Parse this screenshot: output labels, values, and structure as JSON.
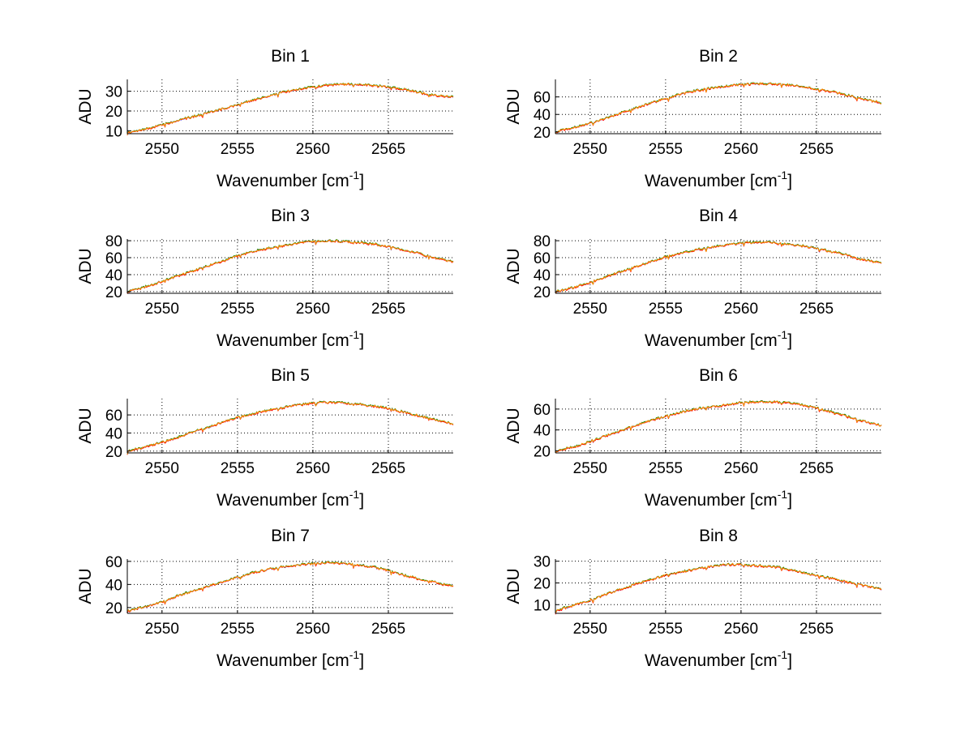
{
  "chart_data": [
    {
      "type": "line",
      "title": "Bin 1",
      "xlabel": "Wavenumber [cm",
      "xlabel_sup": "-1",
      "xlabel_end": "]",
      "ylabel": "ADU",
      "xlim": [
        2547.7,
        2569.3
      ],
      "ylim": [
        8.5,
        36
      ],
      "xticks": [
        2550,
        2555,
        2560,
        2565
      ],
      "yticks": [
        10,
        20,
        30
      ],
      "grid": true,
      "colors": [
        "#0000ff",
        "#008000",
        "#ff0000",
        "#ff9900"
      ],
      "series": [
        {
          "name": "Bin 1",
          "x": [
            2547.7,
            2549,
            2550,
            2551,
            2552,
            2553,
            2554,
            2555,
            2556,
            2557,
            2558,
            2559,
            2560,
            2561,
            2562,
            2563,
            2564,
            2565,
            2566,
            2567,
            2568,
            2569.3
          ],
          "y": [
            9,
            11,
            13,
            15,
            17,
            19,
            21,
            23,
            25.5,
            27.5,
            29.5,
            31,
            32,
            33,
            33.5,
            33.5,
            33,
            32,
            31,
            29.5,
            28,
            27
          ]
        }
      ],
      "annotations": []
    },
    {
      "type": "line",
      "title": "Bin 2",
      "xlabel": "Wavenumber [cm",
      "xlabel_sup": "-1",
      "xlabel_end": "]",
      "ylabel": "ADU",
      "xlim": [
        2547.7,
        2569.3
      ],
      "ylim": [
        18,
        80
      ],
      "xticks": [
        2550,
        2555,
        2560,
        2565
      ],
      "yticks": [
        20,
        40,
        60
      ],
      "grid": true,
      "colors": [
        "#0000ff",
        "#008000",
        "#ff0000",
        "#ff9900"
      ],
      "series": [
        {
          "name": "Bin 2",
          "x": [
            2547.7,
            2549,
            2550,
            2551,
            2552,
            2553,
            2554,
            2555,
            2556,
            2557,
            2558,
            2559,
            2560,
            2561,
            2562,
            2563,
            2564,
            2565,
            2566,
            2567,
            2568,
            2569.3
          ],
          "y": [
            20,
            25,
            30,
            35,
            41,
            47,
            53,
            58,
            63,
            67,
            70,
            72,
            74,
            75,
            75,
            74,
            72,
            69,
            66,
            62,
            58,
            53
          ]
        }
      ]
    },
    {
      "type": "line",
      "title": "Bin 3",
      "xlabel": "Wavenumber [cm",
      "xlabel_sup": "-1",
      "xlabel_end": "]",
      "ylabel": "ADU",
      "xlim": [
        2547.7,
        2569.3
      ],
      "ylim": [
        18,
        82
      ],
      "xticks": [
        2550,
        2555,
        2560,
        2565
      ],
      "yticks": [
        20,
        40,
        60,
        80
      ],
      "grid": true,
      "colors": [
        "#0000ff",
        "#008000",
        "#ff0000",
        "#ff9900"
      ],
      "series": [
        {
          "name": "Bin 3",
          "x": [
            2547.7,
            2549,
            2550,
            2551,
            2552,
            2553,
            2554,
            2555,
            2556,
            2557,
            2558,
            2559,
            2560,
            2561,
            2562,
            2563,
            2564,
            2565,
            2566,
            2567,
            2568,
            2569.3
          ],
          "y": [
            20,
            26,
            32,
            38,
            44,
            50,
            56,
            62,
            67,
            71,
            74,
            77,
            79,
            80,
            79,
            78,
            76,
            73,
            69,
            65,
            60,
            55
          ]
        }
      ]
    },
    {
      "type": "line",
      "title": "Bin 4",
      "xlabel": "Wavenumber [cm",
      "xlabel_sup": "-1",
      "xlabel_end": "]",
      "ylabel": "ADU",
      "xlim": [
        2547.7,
        2569.3
      ],
      "ylim": [
        18,
        82
      ],
      "xticks": [
        2550,
        2555,
        2560,
        2565
      ],
      "yticks": [
        20,
        40,
        60,
        80
      ],
      "grid": true,
      "colors": [
        "#0000ff",
        "#008000",
        "#ff0000",
        "#ff9900"
      ],
      "series": [
        {
          "name": "Bin 4",
          "x": [
            2547.7,
            2549,
            2550,
            2551,
            2552,
            2553,
            2554,
            2555,
            2556,
            2557,
            2558,
            2559,
            2560,
            2561,
            2562,
            2563,
            2564,
            2565,
            2566,
            2567,
            2568,
            2569.3
          ],
          "y": [
            20,
            25,
            31,
            37,
            43,
            49,
            55,
            61,
            65,
            69,
            72,
            75,
            77,
            78,
            78,
            76,
            74,
            71,
            67,
            63,
            58,
            54
          ]
        }
      ]
    },
    {
      "type": "line",
      "title": "Bin 5",
      "xlabel": "Wavenumber [cm",
      "xlabel_sup": "-1",
      "xlabel_end": "]",
      "ylabel": "ADU",
      "xlim": [
        2547.7,
        2569.3
      ],
      "ylim": [
        18,
        78
      ],
      "xticks": [
        2550,
        2555,
        2560,
        2565
      ],
      "yticks": [
        20,
        40,
        60
      ],
      "grid": true,
      "colors": [
        "#0000ff",
        "#008000",
        "#ff0000",
        "#ff9900"
      ],
      "series": [
        {
          "name": "Bin 5",
          "x": [
            2547.7,
            2549,
            2550,
            2551,
            2552,
            2553,
            2554,
            2555,
            2556,
            2557,
            2558,
            2559,
            2560,
            2561,
            2562,
            2563,
            2564,
            2565,
            2566,
            2567,
            2568,
            2569.3
          ],
          "y": [
            20,
            25,
            30,
            35,
            41,
            46,
            52,
            57,
            61,
            65,
            68,
            71,
            73,
            74,
            73,
            72,
            70,
            67,
            63,
            59,
            55,
            50
          ]
        }
      ]
    },
    {
      "type": "line",
      "title": "Bin 6",
      "xlabel": "Wavenumber [cm",
      "xlabel_sup": "-1",
      "xlabel_end": "]",
      "ylabel": "ADU",
      "xlim": [
        2547.7,
        2569.3
      ],
      "ylim": [
        18,
        70
      ],
      "xticks": [
        2550,
        2555,
        2560,
        2565
      ],
      "yticks": [
        20,
        40,
        60
      ],
      "grid": true,
      "colors": [
        "#0000ff",
        "#008000",
        "#ff0000",
        "#ff9900"
      ],
      "series": [
        {
          "name": "Bin 6",
          "x": [
            2547.7,
            2549,
            2550,
            2551,
            2552,
            2553,
            2554,
            2555,
            2556,
            2557,
            2558,
            2559,
            2560,
            2561,
            2562,
            2563,
            2564,
            2565,
            2566,
            2567,
            2568,
            2569.3
          ],
          "y": [
            20,
            24,
            29,
            34,
            39,
            44,
            49,
            53,
            57,
            60,
            62,
            64,
            66,
            67,
            67,
            66,
            64,
            61,
            57,
            53,
            49,
            44
          ]
        }
      ]
    },
    {
      "type": "line",
      "title": "Bin 7",
      "xlabel": "Wavenumber [cm",
      "xlabel_sup": "-1",
      "xlabel_end": "]",
      "ylabel": "ADU",
      "xlim": [
        2547.7,
        2569.3
      ],
      "ylim": [
        15,
        62
      ],
      "xticks": [
        2550,
        2555,
        2560,
        2565
      ],
      "yticks": [
        20,
        40,
        60
      ],
      "grid": true,
      "colors": [
        "#0000ff",
        "#008000",
        "#ff0000",
        "#ff9900"
      ],
      "series": [
        {
          "name": "Bin 7",
          "x": [
            2547.7,
            2549,
            2550,
            2551,
            2552,
            2553,
            2554,
            2555,
            2556,
            2557,
            2558,
            2559,
            2560,
            2561,
            2562,
            2563,
            2564,
            2565,
            2566,
            2567,
            2568,
            2569.3
          ],
          "y": [
            17,
            21,
            25,
            30,
            34,
            38,
            42,
            46,
            50,
            53,
            55,
            57,
            58,
            59,
            58,
            57,
            55,
            52,
            48,
            45,
            42,
            38
          ]
        }
      ]
    },
    {
      "type": "line",
      "title": "Bin 8",
      "xlabel": "Wavenumber [cm",
      "xlabel_sup": "-1",
      "xlabel_end": "]",
      "ylabel": "ADU",
      "xlim": [
        2547.7,
        2569.3
      ],
      "ylim": [
        6,
        31
      ],
      "xticks": [
        2550,
        2555,
        2560,
        2565
      ],
      "yticks": [
        10,
        20,
        30
      ],
      "grid": true,
      "colors": [
        "#0000ff",
        "#008000",
        "#ff0000",
        "#ff9900"
      ],
      "series": [
        {
          "name": "Bin 8",
          "x": [
            2547.7,
            2549,
            2550,
            2551,
            2552,
            2553,
            2554,
            2555,
            2556,
            2557,
            2558,
            2559,
            2560,
            2561,
            2562,
            2563,
            2564,
            2565,
            2566,
            2567,
            2568,
            2569.3
          ],
          "y": [
            7,
            10,
            12,
            14.5,
            17,
            19.5,
            21.5,
            23.5,
            25,
            26.5,
            27.5,
            28.5,
            28.5,
            28,
            27.5,
            26.5,
            25,
            23.5,
            22,
            20.5,
            19,
            17
          ]
        }
      ]
    }
  ]
}
